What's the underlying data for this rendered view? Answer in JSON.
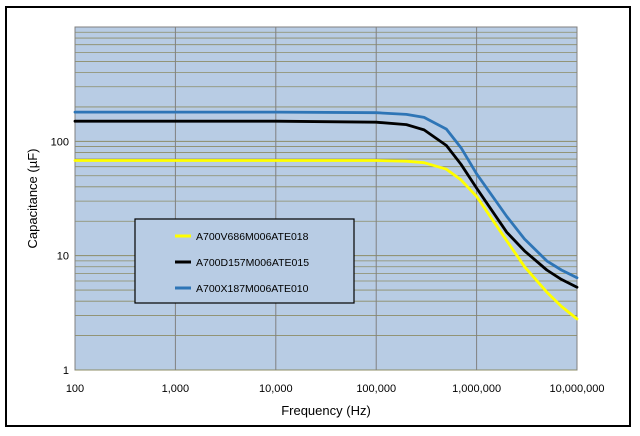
{
  "chart_data": {
    "type": "line",
    "x_scale": "log",
    "y_scale": "log",
    "xlim": [
      100,
      10000000
    ],
    "ylim": [
      1,
      1000
    ],
    "xlabel": "Frequency (Hz)",
    "ylabel": "Capacitance  (µF)",
    "x_ticks": [
      100,
      1000,
      10000,
      100000,
      1000000,
      10000000
    ],
    "x_tick_labels": [
      "100",
      "1,000",
      "10,000",
      "100,000",
      "1,000,000",
      "10,000,000"
    ],
    "y_ticks": [
      1,
      10,
      100
    ],
    "y_tick_labels": [
      "1",
      "10",
      "100"
    ],
    "grid": true,
    "legend_position": "center-left",
    "plot_background": "#b8cce4",
    "grid_color": "#8c8c66",
    "series": [
      {
        "name": "A700V686M006ATE018",
        "color": "#ffff00",
        "x": [
          100,
          1000,
          10000,
          100000,
          200000,
          300000,
          500000,
          700000,
          1000000,
          2000000,
          3000000,
          5000000,
          7000000,
          10000000
        ],
        "values": [
          68,
          68,
          68,
          68,
          67,
          65,
          57,
          46,
          33,
          13.5,
          8,
          4.8,
          3.6,
          2.8
        ]
      },
      {
        "name": "A700D157M006ATE015",
        "color": "#000000",
        "x": [
          100,
          1000,
          10000,
          100000,
          200000,
          300000,
          500000,
          700000,
          1000000,
          2000000,
          3000000,
          5000000,
          7000000,
          10000000
        ],
        "values": [
          150,
          150,
          150,
          147,
          140,
          126,
          92,
          63,
          39,
          16,
          11,
          7.5,
          6.2,
          5.3
        ]
      },
      {
        "name": "A700X187M006ATE010",
        "color": "#2e75b6",
        "x": [
          100,
          1000,
          10000,
          100000,
          200000,
          300000,
          500000,
          700000,
          1000000,
          2000000,
          3000000,
          5000000,
          7000000,
          10000000
        ],
        "values": [
          180,
          180,
          180,
          178,
          172,
          162,
          128,
          88,
          52,
          22,
          14,
          9,
          7.5,
          6.4
        ]
      }
    ]
  }
}
